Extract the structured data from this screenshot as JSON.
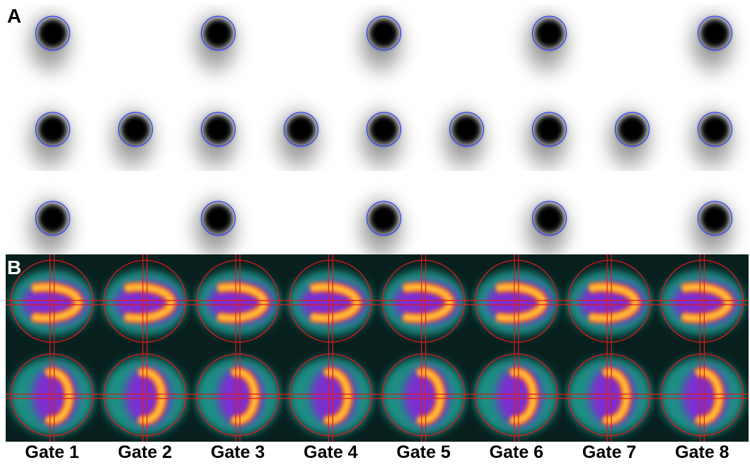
{
  "panel_a": {
    "label": "A"
  },
  "panel_b": {
    "label": "B",
    "gates": [
      "Gate 1",
      "Gate 2",
      "Gate 3",
      "Gate 4",
      "Gate 5",
      "Gate 6",
      "Gate 7",
      "Gate 8"
    ]
  }
}
